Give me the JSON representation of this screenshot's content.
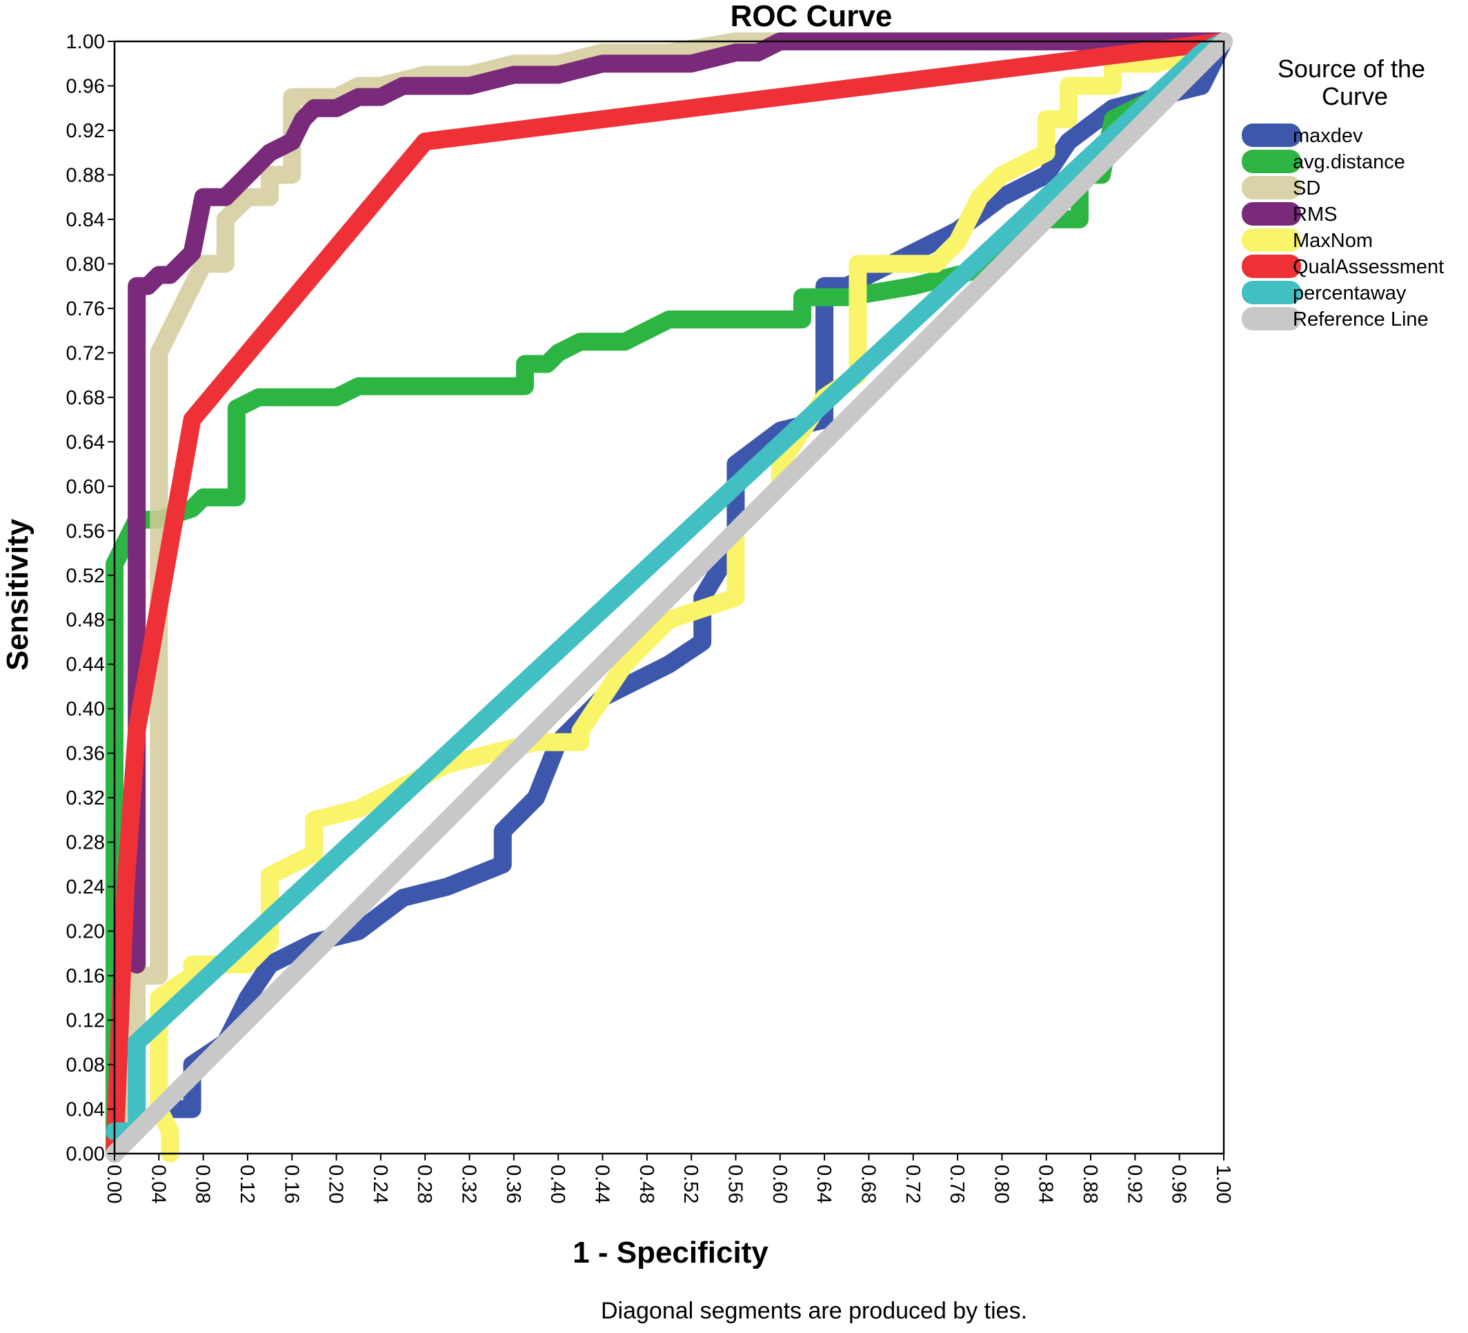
{
  "chart_data": {
    "type": "line",
    "title": "ROC Curve",
    "xlabel": "1 - Specificity",
    "ylabel": "Sensitivity",
    "xlim": [
      0,
      1
    ],
    "ylim": [
      0,
      1
    ],
    "xticks": [
      "0.00",
      "0.04",
      "0.08",
      "0.12",
      "0.16",
      "0.20",
      "0.24",
      "0.28",
      "0.32",
      "0.36",
      "0.40",
      "0.44",
      "0.48",
      "0.52",
      "0.56",
      "0.60",
      "0.64",
      "0.68",
      "0.72",
      "0.76",
      "0.80",
      "0.84",
      "0.88",
      "0.92",
      "0.96",
      "1.00"
    ],
    "yticks": [
      "0.00",
      "0.04",
      "0.08",
      "0.12",
      "0.16",
      "0.20",
      "0.24",
      "0.28",
      "0.32",
      "0.36",
      "0.40",
      "0.44",
      "0.48",
      "0.52",
      "0.56",
      "0.60",
      "0.64",
      "0.68",
      "0.72",
      "0.76",
      "0.80",
      "0.84",
      "0.88",
      "0.92",
      "0.96",
      "1.00"
    ],
    "grid": false,
    "legend_title": "Source of the Curve",
    "legend_position": "right",
    "footnote": "Diagonal segments are produced by ties.",
    "series": [
      {
        "name": "maxdev",
        "color": "#3D57AC",
        "x": [
          0.04,
          0.07,
          0.07,
          0.1,
          0.12,
          0.14,
          0.18,
          0.22,
          0.26,
          0.3,
          0.35,
          0.35,
          0.38,
          0.4,
          0.44,
          0.5,
          0.53,
          0.53,
          0.56,
          0.56,
          0.6,
          0.64,
          0.64,
          0.66,
          0.68,
          0.72,
          0.76,
          0.8,
          0.84,
          0.86,
          0.9,
          0.94,
          0.98,
          1.0
        ],
        "y": [
          0.04,
          0.04,
          0.08,
          0.1,
          0.14,
          0.17,
          0.19,
          0.2,
          0.23,
          0.24,
          0.26,
          0.29,
          0.32,
          0.37,
          0.41,
          0.44,
          0.46,
          0.5,
          0.55,
          0.62,
          0.65,
          0.66,
          0.78,
          0.78,
          0.79,
          0.81,
          0.83,
          0.86,
          0.88,
          0.91,
          0.94,
          0.95,
          0.96,
          1.0
        ]
      },
      {
        "name": "avg.distance",
        "color": "#2DB544",
        "x": [
          0.0,
          0.0,
          0.02,
          0.04,
          0.07,
          0.08,
          0.11,
          0.11,
          0.13,
          0.16,
          0.2,
          0.22,
          0.3,
          0.37,
          0.37,
          0.39,
          0.4,
          0.42,
          0.46,
          0.48,
          0.5,
          0.52,
          0.62,
          0.62,
          0.66,
          0.72,
          0.76,
          0.8,
          0.8,
          0.84,
          0.87,
          0.87,
          0.89,
          0.9,
          0.94,
          1.0
        ],
        "y": [
          0.0,
          0.53,
          0.57,
          0.57,
          0.58,
          0.59,
          0.59,
          0.67,
          0.68,
          0.68,
          0.68,
          0.69,
          0.69,
          0.69,
          0.71,
          0.71,
          0.72,
          0.73,
          0.73,
          0.74,
          0.75,
          0.75,
          0.75,
          0.77,
          0.77,
          0.78,
          0.79,
          0.8,
          0.82,
          0.84,
          0.84,
          0.88,
          0.88,
          0.93,
          0.95,
          1.0
        ]
      },
      {
        "name": "SD",
        "color": "#D3CB9A",
        "x": [
          0.0,
          0.02,
          0.02,
          0.04,
          0.04,
          0.08,
          0.1,
          0.1,
          0.12,
          0.14,
          0.14,
          0.16,
          0.16,
          0.18,
          0.2,
          0.22,
          0.24,
          0.28,
          0.32,
          0.36,
          0.4,
          0.44,
          0.5,
          0.56,
          0.6,
          1.0
        ],
        "y": [
          0.0,
          0.12,
          0.16,
          0.16,
          0.72,
          0.8,
          0.8,
          0.84,
          0.86,
          0.86,
          0.88,
          0.88,
          0.95,
          0.95,
          0.95,
          0.96,
          0.96,
          0.97,
          0.97,
          0.98,
          0.98,
          0.99,
          0.99,
          1.0,
          1.0,
          1.0
        ],
        "opacity": 0.85
      },
      {
        "name": "RMS",
        "color": "#7A2A7A",
        "x": [
          0.02,
          0.02,
          0.03,
          0.04,
          0.05,
          0.06,
          0.07,
          0.08,
          0.1,
          0.12,
          0.14,
          0.16,
          0.17,
          0.18,
          0.2,
          0.22,
          0.24,
          0.26,
          0.28,
          0.32,
          0.36,
          0.4,
          0.44,
          0.46,
          0.48,
          0.52,
          0.56,
          0.58,
          0.6,
          0.7,
          0.8,
          0.9,
          1.0
        ],
        "y": [
          0.17,
          0.78,
          0.78,
          0.79,
          0.79,
          0.8,
          0.81,
          0.86,
          0.86,
          0.88,
          0.9,
          0.91,
          0.93,
          0.94,
          0.94,
          0.95,
          0.95,
          0.96,
          0.96,
          0.96,
          0.97,
          0.97,
          0.98,
          0.98,
          0.98,
          0.98,
          0.99,
          0.99,
          1.0,
          1.0,
          1.0,
          1.0,
          1.0
        ]
      },
      {
        "name": "MaxNom",
        "color": "#FAF46A",
        "x": [
          0.05,
          0.05,
          0.04,
          0.04,
          0.07,
          0.07,
          0.12,
          0.14,
          0.14,
          0.16,
          0.18,
          0.18,
          0.22,
          0.26,
          0.3,
          0.34,
          0.38,
          0.42,
          0.42,
          0.46,
          0.5,
          0.56,
          0.56,
          0.6,
          0.6,
          0.64,
          0.67,
          0.67,
          0.7,
          0.74,
          0.76,
          0.78,
          0.8,
          0.84,
          0.84,
          0.86,
          0.86,
          0.88,
          0.9,
          0.9,
          0.94,
          1.0
        ],
        "y": [
          0.0,
          0.02,
          0.04,
          0.14,
          0.16,
          0.17,
          0.17,
          0.19,
          0.25,
          0.26,
          0.27,
          0.3,
          0.31,
          0.33,
          0.35,
          0.36,
          0.37,
          0.37,
          0.38,
          0.44,
          0.48,
          0.5,
          0.56,
          0.6,
          0.62,
          0.68,
          0.7,
          0.8,
          0.8,
          0.8,
          0.82,
          0.86,
          0.88,
          0.9,
          0.93,
          0.93,
          0.96,
          0.96,
          0.96,
          0.98,
          0.98,
          1.0
        ]
      },
      {
        "name": "QualAssessment",
        "color": "#EE3137",
        "x": [
          0.0,
          0.01,
          0.02,
          0.07,
          0.28,
          1.0
        ],
        "y": [
          0.0,
          0.24,
          0.38,
          0.66,
          0.91,
          1.0
        ]
      },
      {
        "name": "percentaway",
        "color": "#42BFC2",
        "x": [
          0.0,
          0.02,
          0.02,
          0.02,
          0.98,
          1.0
        ],
        "y": [
          0.02,
          0.02,
          0.08,
          0.1,
          0.99,
          1.0
        ]
      },
      {
        "name": "Reference Line",
        "color": "#C8C8C8",
        "x": [
          0.0,
          1.0
        ],
        "y": [
          0.0,
          1.0
        ]
      }
    ]
  }
}
